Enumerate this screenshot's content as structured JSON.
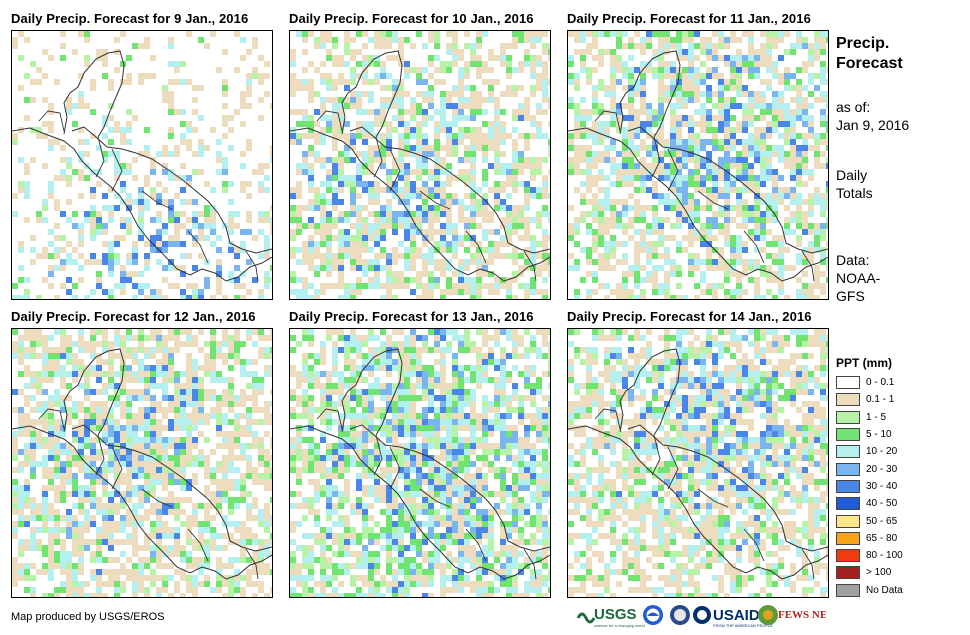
{
  "panels": [
    {
      "title": "Daily Precip. Forecast for 9 Jan., 2016"
    },
    {
      "title": "Daily Precip. Forecast for 10 Jan., 2016"
    },
    {
      "title": "Daily Precip. Forecast for 11 Jan., 2016"
    },
    {
      "title": "Daily Precip. Forecast for 12 Jan., 2016"
    },
    {
      "title": "Daily Precip. Forecast for 13 Jan., 2016"
    },
    {
      "title": "Daily Precip. Forecast for 14 Jan., 2016"
    }
  ],
  "side_info": {
    "title_line1": "Precip.",
    "title_line2": "Forecast",
    "asof_label": "as of:",
    "asof_date": "Jan 9, 2016",
    "totals_line1": "Daily",
    "totals_line2": "Totals",
    "data_line1": "Data:",
    "data_line2": "NOAA-",
    "data_line3": "GFS"
  },
  "legend": {
    "title": "PPT (mm)",
    "items": [
      {
        "label": "0 - 0.1",
        "color": "#ffffff"
      },
      {
        "label": "0.1 - 1",
        "color": "#eddcbd"
      },
      {
        "label": "1 - 5",
        "color": "#b7f3a6"
      },
      {
        "label": "5 - 10",
        "color": "#71e371"
      },
      {
        "label": "10 - 20",
        "color": "#b4f0ef"
      },
      {
        "label": "20 - 30",
        "color": "#7bb5f0"
      },
      {
        "label": "30 - 40",
        "color": "#4a86e8"
      },
      {
        "label": "40 - 50",
        "color": "#1f5cd6"
      },
      {
        "label": "50 - 65",
        "color": "#ffe58a"
      },
      {
        "label": "65 - 80",
        "color": "#f7a21b"
      },
      {
        "label": "80 - 100",
        "color": "#f23c0f"
      },
      {
        "label": "> 100",
        "color": "#a51f1f"
      },
      {
        "label": "No Data",
        "color": "#a0a0a0"
      }
    ]
  },
  "credit": "Map produced by USGS/EROS",
  "logos": {
    "usgs": "USGS",
    "usgs_tagline": "science for a changing world",
    "usaid": "USAID",
    "usaid_tagline": "FROM THE AMERICAN PEOPLE",
    "fewsnet": "FEWS NET"
  }
}
